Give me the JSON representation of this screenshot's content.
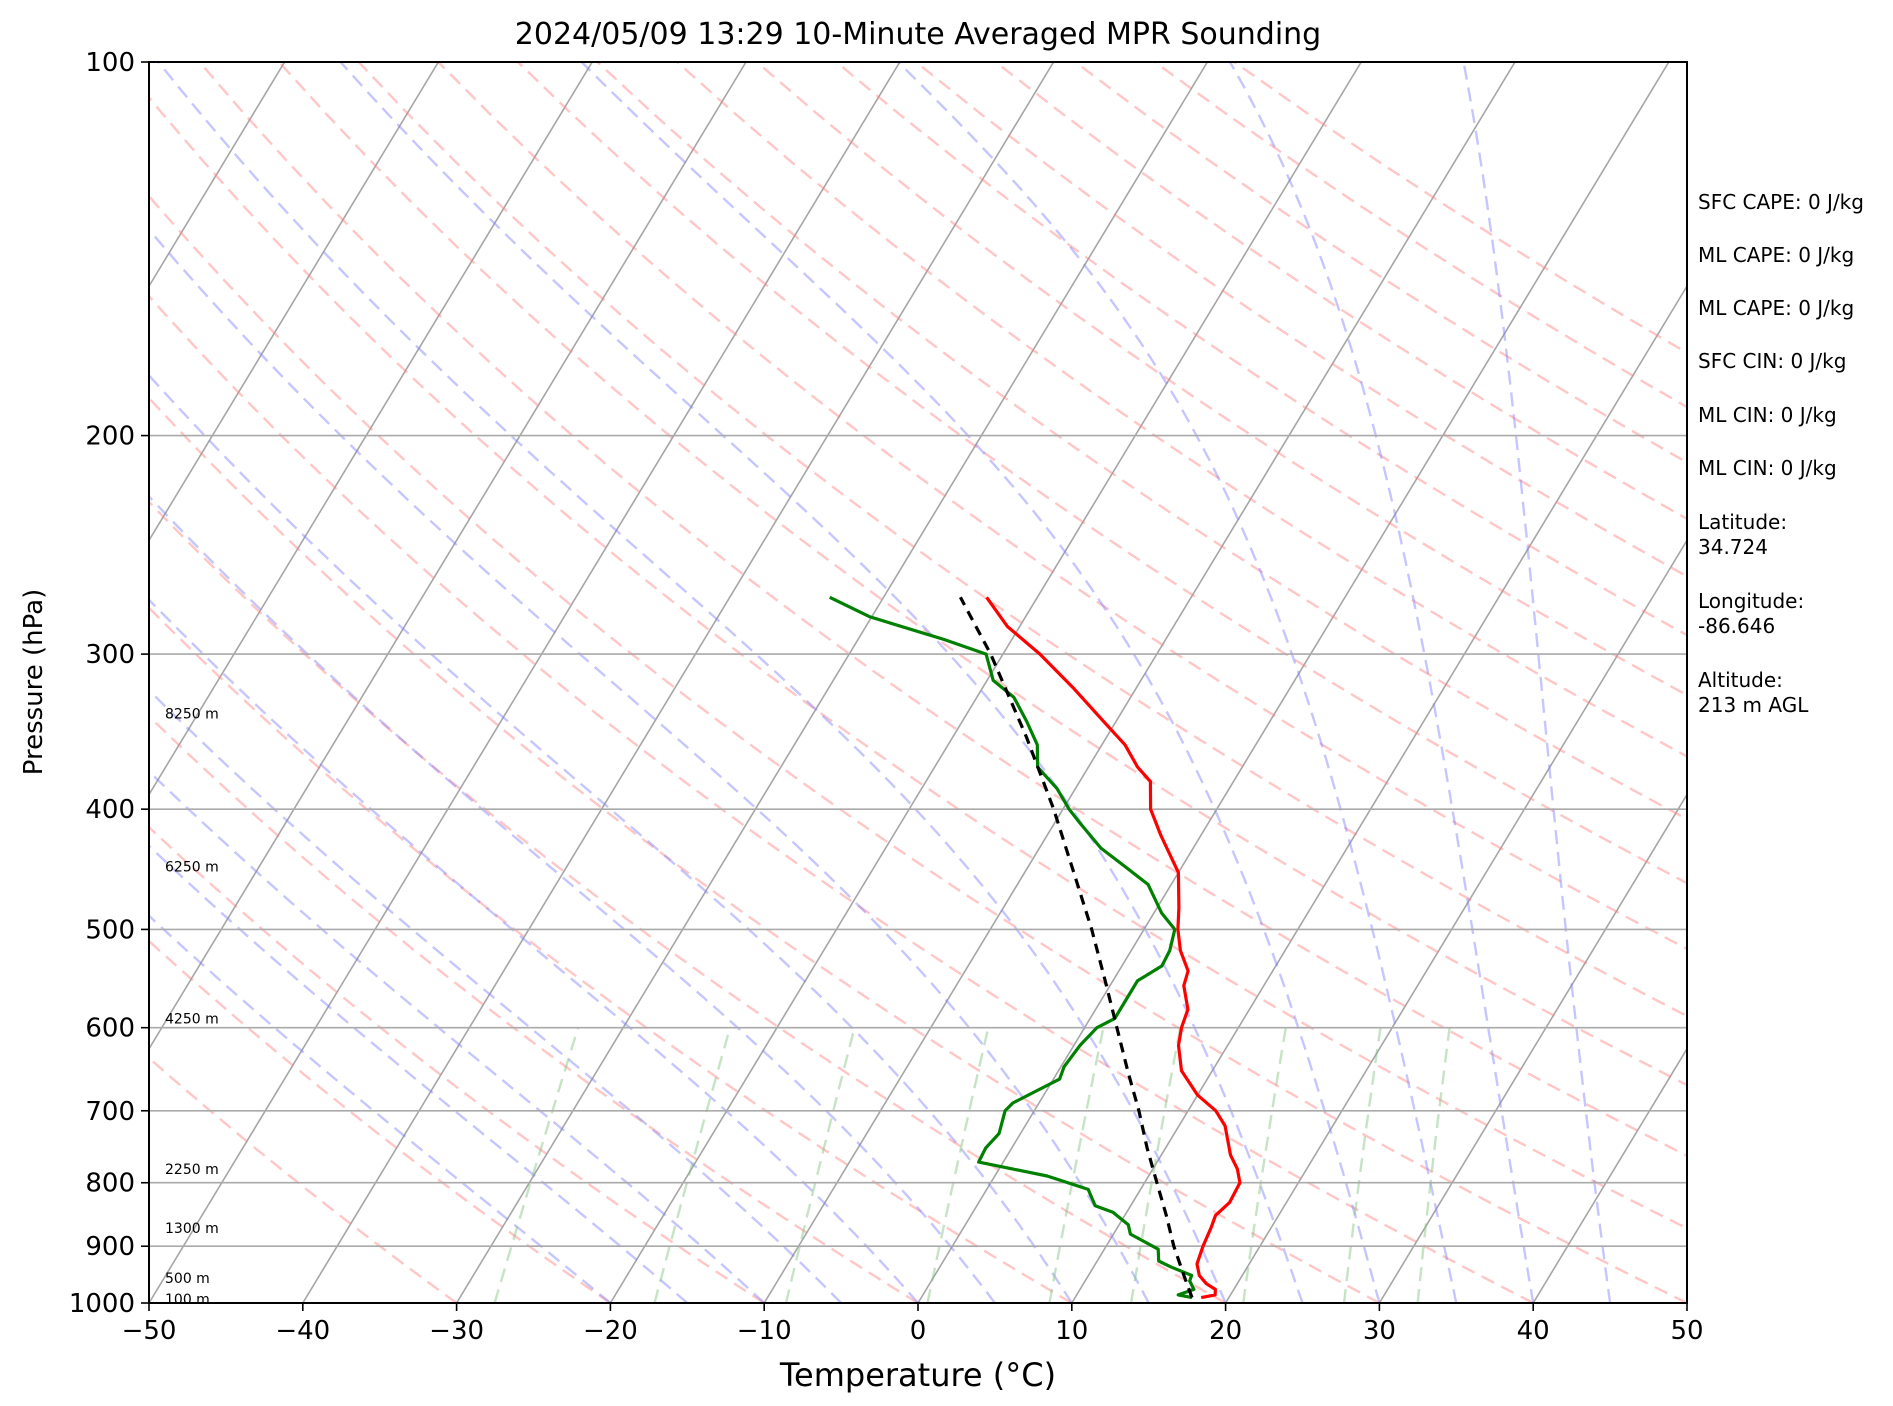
{
  "chart_data": {
    "type": "line",
    "title": "2024/05/09 13:29 10-Minute Averaged MPR Sounding",
    "xlabel": "Temperature (°C)",
    "ylabel": "Pressure (hPa)",
    "xlim": [
      -50,
      50
    ],
    "ylim": [
      1000,
      100
    ],
    "y_scale": "log",
    "xticks": [
      -50,
      -40,
      -30,
      -20,
      -10,
      0,
      10,
      20,
      30,
      40,
      50
    ],
    "xtick_labels": [
      "−50",
      "−40",
      "−30",
      "−20",
      "−10",
      "0",
      "10",
      "20",
      "30",
      "40",
      "50"
    ],
    "yticks": [
      100,
      200,
      300,
      400,
      500,
      600,
      700,
      800,
      900,
      1000
    ],
    "ytick_labels": [
      "100",
      "200",
      "300",
      "400",
      "500",
      "600",
      "700",
      "800",
      "900",
      "1000"
    ],
    "grid": true,
    "skew": "skew-T log-P",
    "height_labels": [
      {
        "text": "100 m",
        "p": 993
      },
      {
        "text": "500 m",
        "p": 955
      },
      {
        "text": "1300 m",
        "p": 870
      },
      {
        "text": "2250 m",
        "p": 780
      },
      {
        "text": "4250 m",
        "p": 590
      },
      {
        "text": "6250 m",
        "p": 445
      },
      {
        "text": "8250 m",
        "p": 335
      }
    ],
    "series": [
      {
        "role": "temperature",
        "color": "#ff0000",
        "points": [
          {
            "p": 990,
            "t": 18.2
          },
          {
            "p": 985,
            "t": 19.0
          },
          {
            "p": 975,
            "t": 18.8
          },
          {
            "p": 965,
            "t": 18.0
          },
          {
            "p": 950,
            "t": 17.2
          },
          {
            "p": 930,
            "t": 16.6
          },
          {
            "p": 900,
            "t": 16.3
          },
          {
            "p": 870,
            "t": 16.1
          },
          {
            "p": 850,
            "t": 15.9
          },
          {
            "p": 830,
            "t": 16.3
          },
          {
            "p": 800,
            "t": 16.2
          },
          {
            "p": 780,
            "t": 15.5
          },
          {
            "p": 760,
            "t": 14.5
          },
          {
            "p": 720,
            "t": 13.0
          },
          {
            "p": 700,
            "t": 11.8
          },
          {
            "p": 680,
            "t": 10.0
          },
          {
            "p": 650,
            "t": 8.0
          },
          {
            "p": 620,
            "t": 6.8
          },
          {
            "p": 600,
            "t": 6.3
          },
          {
            "p": 580,
            "t": 6.0
          },
          {
            "p": 555,
            "t": 4.8
          },
          {
            "p": 540,
            "t": 4.5
          },
          {
            "p": 520,
            "t": 3.2
          },
          {
            "p": 500,
            "t": 2.2
          },
          {
            "p": 480,
            "t": 1.4
          },
          {
            "p": 450,
            "t": 0.0
          },
          {
            "p": 420,
            "t": -2.6
          },
          {
            "p": 400,
            "t": -4.3
          },
          {
            "p": 380,
            "t": -5.4
          },
          {
            "p": 370,
            "t": -6.8
          },
          {
            "p": 355,
            "t": -8.5
          },
          {
            "p": 340,
            "t": -10.8
          },
          {
            "p": 320,
            "t": -14.0
          },
          {
            "p": 300,
            "t": -17.6
          },
          {
            "p": 285,
            "t": -20.8
          },
          {
            "p": 270,
            "t": -23.3
          }
        ]
      },
      {
        "role": "dewpoint",
        "color": "#008000",
        "points": [
          {
            "p": 990,
            "t": 17.6
          },
          {
            "p": 985,
            "t": 16.6
          },
          {
            "p": 975,
            "t": 17.4
          },
          {
            "p": 960,
            "t": 16.8
          },
          {
            "p": 950,
            "t": 16.7
          },
          {
            "p": 935,
            "t": 15.0
          },
          {
            "p": 925,
            "t": 14.0
          },
          {
            "p": 905,
            "t": 13.5
          },
          {
            "p": 880,
            "t": 11.1
          },
          {
            "p": 865,
            "t": 10.6
          },
          {
            "p": 845,
            "t": 9.1
          },
          {
            "p": 835,
            "t": 7.7
          },
          {
            "p": 810,
            "t": 6.6
          },
          {
            "p": 790,
            "t": 3.4
          },
          {
            "p": 770,
            "t": -1.6
          },
          {
            "p": 750,
            "t": -1.7
          },
          {
            "p": 730,
            "t": -1.4
          },
          {
            "p": 700,
            "t": -1.9
          },
          {
            "p": 690,
            "t": -1.7
          },
          {
            "p": 660,
            "t": 0.4
          },
          {
            "p": 645,
            "t": 0.2
          },
          {
            "p": 620,
            "t": 0.4
          },
          {
            "p": 600,
            "t": 0.8
          },
          {
            "p": 590,
            "t": 1.6
          },
          {
            "p": 570,
            "t": 1.6
          },
          {
            "p": 550,
            "t": 1.6
          },
          {
            "p": 535,
            "t": 2.6
          },
          {
            "p": 520,
            "t": 2.5
          },
          {
            "p": 500,
            "t": 2.0
          },
          {
            "p": 485,
            "t": 0.5
          },
          {
            "p": 460,
            "t": -1.5
          },
          {
            "p": 445,
            "t": -3.7
          },
          {
            "p": 430,
            "t": -6.0
          },
          {
            "p": 410,
            "t": -8.4
          },
          {
            "p": 400,
            "t": -9.6
          },
          {
            "p": 385,
            "t": -11.2
          },
          {
            "p": 370,
            "t": -13.3
          },
          {
            "p": 355,
            "t": -14.2
          },
          {
            "p": 340,
            "t": -15.8
          },
          {
            "p": 325,
            "t": -17.6
          },
          {
            "p": 315,
            "t": -19.6
          },
          {
            "p": 300,
            "t": -21.1
          },
          {
            "p": 292,
            "t": -24.4
          },
          {
            "p": 280,
            "t": -30.1
          },
          {
            "p": 270,
            "t": -33.5
          }
        ]
      },
      {
        "role": "parcel-profile",
        "color": "#000000",
        "dashed": true,
        "points": [
          {
            "p": 990,
            "t": 17.6
          },
          {
            "p": 950,
            "t": 16.2
          },
          {
            "p": 900,
            "t": 14.4
          },
          {
            "p": 850,
            "t": 12.7
          },
          {
            "p": 800,
            "t": 10.8
          },
          {
            "p": 750,
            "t": 8.8
          },
          {
            "p": 700,
            "t": 6.8
          },
          {
            "p": 650,
            "t": 4.5
          },
          {
            "p": 600,
            "t": 2.1
          },
          {
            "p": 550,
            "t": -0.5
          },
          {
            "p": 500,
            "t": -3.4
          },
          {
            "p": 450,
            "t": -6.8
          },
          {
            "p": 400,
            "t": -10.6
          },
          {
            "p": 350,
            "t": -15.2
          },
          {
            "p": 300,
            "t": -20.8
          },
          {
            "p": 270,
            "t": -25.0
          }
        ]
      }
    ],
    "reference_lines": {
      "dry_adiabat_color": "#ff8080",
      "moist_adiabat_color": "#8080ff",
      "mixing_ratio_color": "#80c080",
      "isotherm_color": "#808080"
    }
  },
  "info_panel": {
    "items": [
      "SFC CAPE: 0 J/kg",
      "ML CAPE: 0 J/kg",
      "ML CAPE: 0 J/kg",
      "SFC CIN: 0 J/kg",
      "ML CIN: 0 J/kg",
      "ML CIN: 0 J/kg",
      "Latitude:\n34.724",
      "Longitude:\n-86.646",
      "Altitude:\n213 m AGL"
    ]
  }
}
